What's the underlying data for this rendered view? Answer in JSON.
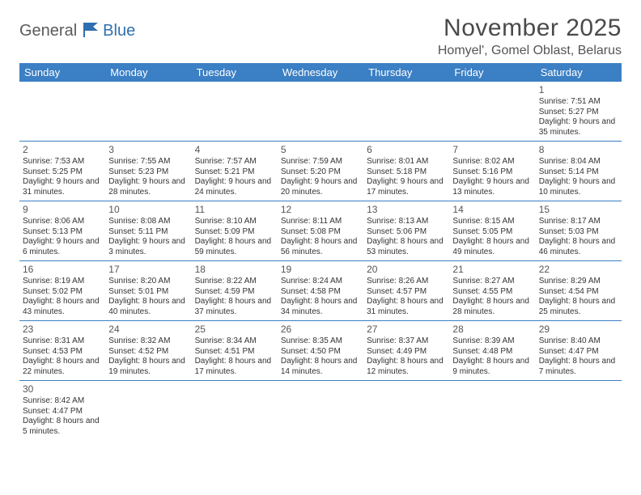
{
  "brand": {
    "general": "General",
    "blue": "Blue"
  },
  "header": {
    "month_title": "November 2025",
    "location": "Homyel', Gomel Oblast, Belarus"
  },
  "colors": {
    "header_bar": "#3b7fc4",
    "row_divider": "#3b7fc4",
    "text": "#333333",
    "title_text": "#4a4a4a",
    "brand_gray": "#5a5a5a",
    "brand_blue": "#2f6fb0"
  },
  "day_labels": [
    "Sunday",
    "Monday",
    "Tuesday",
    "Wednesday",
    "Thursday",
    "Friday",
    "Saturday"
  ],
  "weeks": [
    [
      null,
      null,
      null,
      null,
      null,
      null,
      {
        "n": "1",
        "sunrise": "Sunrise: 7:51 AM",
        "sunset": "Sunset: 5:27 PM",
        "daylight": "Daylight: 9 hours and 35 minutes."
      }
    ],
    [
      {
        "n": "2",
        "sunrise": "Sunrise: 7:53 AM",
        "sunset": "Sunset: 5:25 PM",
        "daylight": "Daylight: 9 hours and 31 minutes."
      },
      {
        "n": "3",
        "sunrise": "Sunrise: 7:55 AM",
        "sunset": "Sunset: 5:23 PM",
        "daylight": "Daylight: 9 hours and 28 minutes."
      },
      {
        "n": "4",
        "sunrise": "Sunrise: 7:57 AM",
        "sunset": "Sunset: 5:21 PM",
        "daylight": "Daylight: 9 hours and 24 minutes."
      },
      {
        "n": "5",
        "sunrise": "Sunrise: 7:59 AM",
        "sunset": "Sunset: 5:20 PM",
        "daylight": "Daylight: 9 hours and 20 minutes."
      },
      {
        "n": "6",
        "sunrise": "Sunrise: 8:01 AM",
        "sunset": "Sunset: 5:18 PM",
        "daylight": "Daylight: 9 hours and 17 minutes."
      },
      {
        "n": "7",
        "sunrise": "Sunrise: 8:02 AM",
        "sunset": "Sunset: 5:16 PM",
        "daylight": "Daylight: 9 hours and 13 minutes."
      },
      {
        "n": "8",
        "sunrise": "Sunrise: 8:04 AM",
        "sunset": "Sunset: 5:14 PM",
        "daylight": "Daylight: 9 hours and 10 minutes."
      }
    ],
    [
      {
        "n": "9",
        "sunrise": "Sunrise: 8:06 AM",
        "sunset": "Sunset: 5:13 PM",
        "daylight": "Daylight: 9 hours and 6 minutes."
      },
      {
        "n": "10",
        "sunrise": "Sunrise: 8:08 AM",
        "sunset": "Sunset: 5:11 PM",
        "daylight": "Daylight: 9 hours and 3 minutes."
      },
      {
        "n": "11",
        "sunrise": "Sunrise: 8:10 AM",
        "sunset": "Sunset: 5:09 PM",
        "daylight": "Daylight: 8 hours and 59 minutes."
      },
      {
        "n": "12",
        "sunrise": "Sunrise: 8:11 AM",
        "sunset": "Sunset: 5:08 PM",
        "daylight": "Daylight: 8 hours and 56 minutes."
      },
      {
        "n": "13",
        "sunrise": "Sunrise: 8:13 AM",
        "sunset": "Sunset: 5:06 PM",
        "daylight": "Daylight: 8 hours and 53 minutes."
      },
      {
        "n": "14",
        "sunrise": "Sunrise: 8:15 AM",
        "sunset": "Sunset: 5:05 PM",
        "daylight": "Daylight: 8 hours and 49 minutes."
      },
      {
        "n": "15",
        "sunrise": "Sunrise: 8:17 AM",
        "sunset": "Sunset: 5:03 PM",
        "daylight": "Daylight: 8 hours and 46 minutes."
      }
    ],
    [
      {
        "n": "16",
        "sunrise": "Sunrise: 8:19 AM",
        "sunset": "Sunset: 5:02 PM",
        "daylight": "Daylight: 8 hours and 43 minutes."
      },
      {
        "n": "17",
        "sunrise": "Sunrise: 8:20 AM",
        "sunset": "Sunset: 5:01 PM",
        "daylight": "Daylight: 8 hours and 40 minutes."
      },
      {
        "n": "18",
        "sunrise": "Sunrise: 8:22 AM",
        "sunset": "Sunset: 4:59 PM",
        "daylight": "Daylight: 8 hours and 37 minutes."
      },
      {
        "n": "19",
        "sunrise": "Sunrise: 8:24 AM",
        "sunset": "Sunset: 4:58 PM",
        "daylight": "Daylight: 8 hours and 34 minutes."
      },
      {
        "n": "20",
        "sunrise": "Sunrise: 8:26 AM",
        "sunset": "Sunset: 4:57 PM",
        "daylight": "Daylight: 8 hours and 31 minutes."
      },
      {
        "n": "21",
        "sunrise": "Sunrise: 8:27 AM",
        "sunset": "Sunset: 4:55 PM",
        "daylight": "Daylight: 8 hours and 28 minutes."
      },
      {
        "n": "22",
        "sunrise": "Sunrise: 8:29 AM",
        "sunset": "Sunset: 4:54 PM",
        "daylight": "Daylight: 8 hours and 25 minutes."
      }
    ],
    [
      {
        "n": "23",
        "sunrise": "Sunrise: 8:31 AM",
        "sunset": "Sunset: 4:53 PM",
        "daylight": "Daylight: 8 hours and 22 minutes."
      },
      {
        "n": "24",
        "sunrise": "Sunrise: 8:32 AM",
        "sunset": "Sunset: 4:52 PM",
        "daylight": "Daylight: 8 hours and 19 minutes."
      },
      {
        "n": "25",
        "sunrise": "Sunrise: 8:34 AM",
        "sunset": "Sunset: 4:51 PM",
        "daylight": "Daylight: 8 hours and 17 minutes."
      },
      {
        "n": "26",
        "sunrise": "Sunrise: 8:35 AM",
        "sunset": "Sunset: 4:50 PM",
        "daylight": "Daylight: 8 hours and 14 minutes."
      },
      {
        "n": "27",
        "sunrise": "Sunrise: 8:37 AM",
        "sunset": "Sunset: 4:49 PM",
        "daylight": "Daylight: 8 hours and 12 minutes."
      },
      {
        "n": "28",
        "sunrise": "Sunrise: 8:39 AM",
        "sunset": "Sunset: 4:48 PM",
        "daylight": "Daylight: 8 hours and 9 minutes."
      },
      {
        "n": "29",
        "sunrise": "Sunrise: 8:40 AM",
        "sunset": "Sunset: 4:47 PM",
        "daylight": "Daylight: 8 hours and 7 minutes."
      }
    ],
    [
      {
        "n": "30",
        "sunrise": "Sunrise: 8:42 AM",
        "sunset": "Sunset: 4:47 PM",
        "daylight": "Daylight: 8 hours and 5 minutes."
      },
      null,
      null,
      null,
      null,
      null,
      null
    ]
  ]
}
